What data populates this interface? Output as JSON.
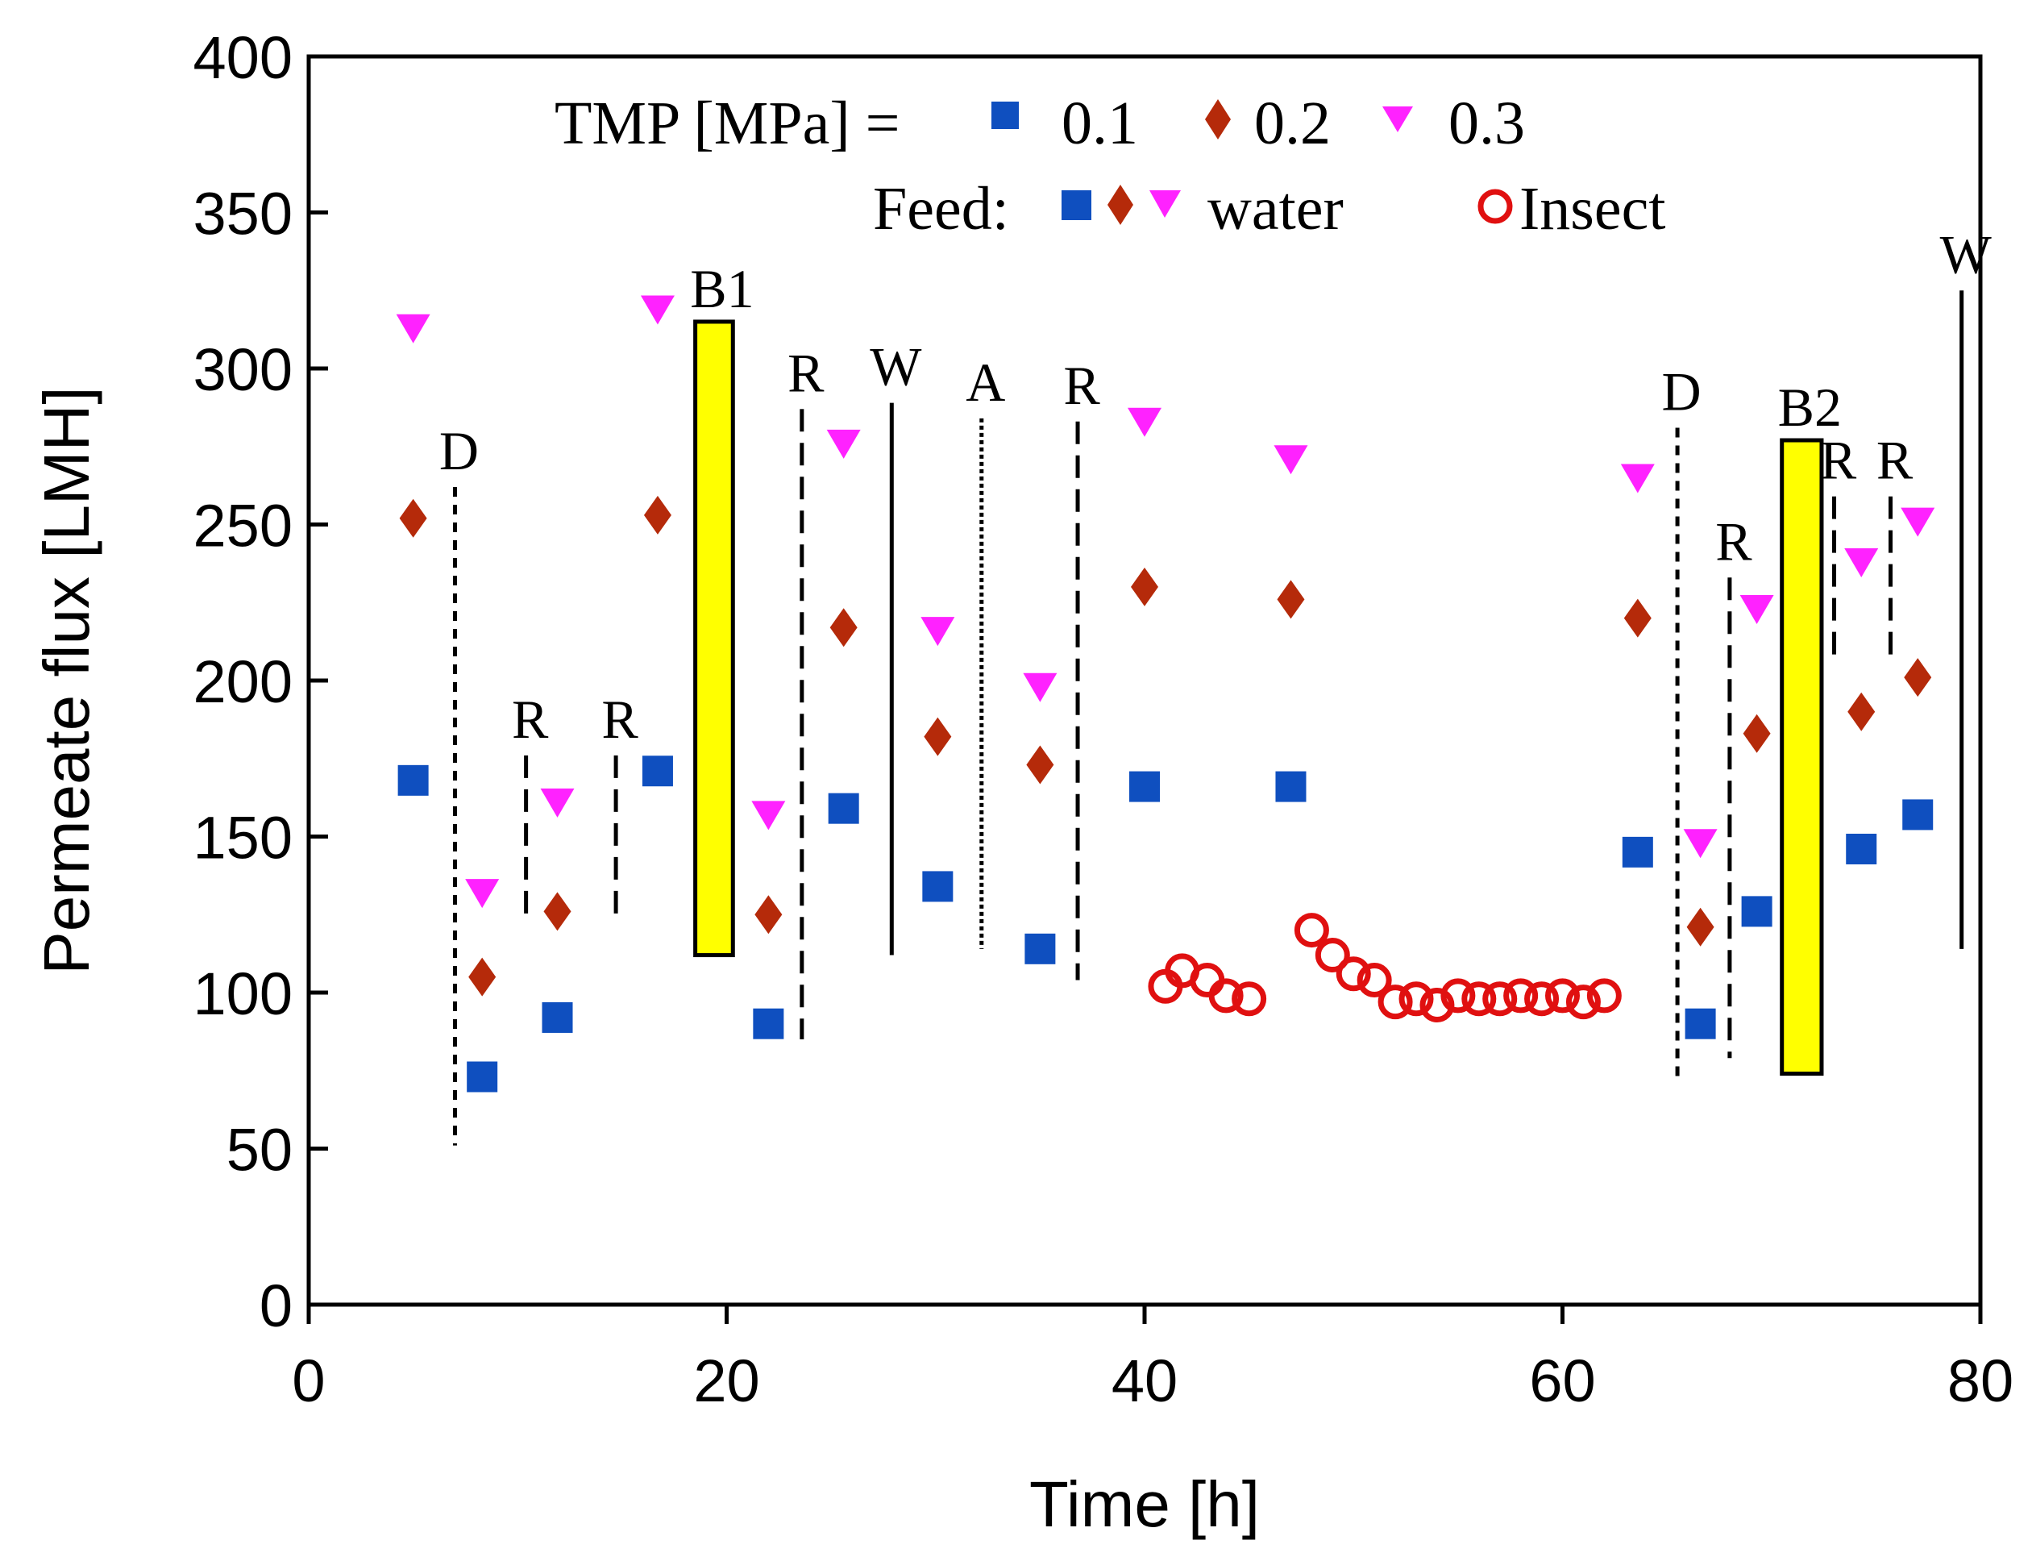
{
  "chart_data": {
    "type": "scatter",
    "xlabel": "Time [h]",
    "ylabel": "Permeate flux [LMH]",
    "xlim": [
      0,
      80
    ],
    "ylim": [
      0,
      400
    ],
    "xticks": [
      0,
      20,
      40,
      60,
      80
    ],
    "yticks": [
      0,
      50,
      100,
      150,
      200,
      250,
      300,
      350,
      400
    ],
    "grid": false,
    "legend": {
      "position": "top",
      "tmp_label": "TMP [MPa] =",
      "tmp_entries": [
        "0.1",
        "0.2",
        "0.3"
      ],
      "feed_label": "Feed:",
      "water_label": "water",
      "insect_label": "Insect"
    },
    "colors": {
      "tmp_0_1": "#0f4fbf",
      "tmp_0_2": "#b52a0a",
      "tmp_0_3": "#ff22ff",
      "insect": "#e01010",
      "bar_fill": "#ffff00"
    },
    "series": [
      {
        "name": "0.1",
        "marker": "square",
        "feed": "water",
        "points": [
          [
            5,
            168
          ],
          [
            8.3,
            73
          ],
          [
            11.9,
            92
          ],
          [
            16.7,
            171
          ],
          [
            22,
            90
          ],
          [
            25.6,
            159
          ],
          [
            30.1,
            134
          ],
          [
            35,
            114
          ],
          [
            40,
            166
          ],
          [
            47,
            166
          ],
          [
            63.6,
            145
          ],
          [
            66.6,
            90
          ],
          [
            69.3,
            126
          ],
          [
            74.3,
            146
          ],
          [
            77,
            157
          ]
        ]
      },
      {
        "name": "0.2",
        "marker": "diamond",
        "feed": "water",
        "points": [
          [
            5,
            252
          ],
          [
            8.3,
            105
          ],
          [
            11.9,
            126
          ],
          [
            16.7,
            253
          ],
          [
            22,
            125
          ],
          [
            25.6,
            217
          ],
          [
            30.1,
            182
          ],
          [
            35,
            173
          ],
          [
            40,
            230
          ],
          [
            47,
            226
          ],
          [
            63.6,
            220
          ],
          [
            66.6,
            121
          ],
          [
            69.3,
            183
          ],
          [
            74.3,
            190
          ],
          [
            77,
            201
          ]
        ]
      },
      {
        "name": "0.3",
        "marker": "triangle-down",
        "feed": "water",
        "points": [
          [
            5,
            313
          ],
          [
            8.3,
            132
          ],
          [
            11.9,
            161
          ],
          [
            16.7,
            319
          ],
          [
            22,
            157
          ],
          [
            25.6,
            276
          ],
          [
            30.1,
            216
          ],
          [
            35,
            198
          ],
          [
            40,
            283
          ],
          [
            47,
            271
          ],
          [
            63.6,
            265
          ],
          [
            66.6,
            148
          ],
          [
            69.3,
            223
          ],
          [
            74.3,
            238
          ],
          [
            77,
            251
          ]
        ]
      },
      {
        "name": "Insect",
        "marker": "circle-open",
        "feed": "insect",
        "points": [
          [
            41,
            102
          ],
          [
            41.8,
            107
          ],
          [
            43,
            104
          ],
          [
            43.9,
            99
          ],
          [
            45,
            98
          ],
          [
            48,
            120
          ],
          [
            49,
            112
          ],
          [
            50,
            106
          ],
          [
            51,
            104
          ],
          [
            52,
            97
          ],
          [
            53,
            98
          ],
          [
            54,
            96
          ],
          [
            55,
            99
          ],
          [
            56,
            98
          ],
          [
            57,
            98
          ],
          [
            58,
            99
          ],
          [
            59,
            98
          ],
          [
            60,
            99
          ],
          [
            61,
            97
          ],
          [
            62,
            99
          ]
        ]
      }
    ],
    "events": [
      {
        "label": "D",
        "x": 7,
        "style": "dotted",
        "y_from": 51,
        "y_to": 262
      },
      {
        "label": "R",
        "x": 10.4,
        "style": "dashed",
        "y_from": 124,
        "y_to": 176
      },
      {
        "label": "R",
        "x": 14.7,
        "style": "dashed",
        "y_from": 124,
        "y_to": 176
      },
      {
        "label": "R",
        "x": 23.6,
        "style": "dashed",
        "y_from": 85,
        "y_to": 287
      },
      {
        "label": "W",
        "x": 27.9,
        "style": "solid",
        "y_from": 112,
        "y_to": 289
      },
      {
        "label": "A",
        "x": 32.2,
        "style": "dense-dotted",
        "y_from": 114,
        "y_to": 284
      },
      {
        "label": "R",
        "x": 36.8,
        "style": "dashed",
        "y_from": 104,
        "y_to": 283
      },
      {
        "label": "D",
        "x": 65.5,
        "style": "dotted",
        "y_from": 71,
        "y_to": 281
      },
      {
        "label": "R",
        "x": 68,
        "style": "dashed",
        "y_from": 79,
        "y_to": 233
      },
      {
        "label": "R",
        "x": 73,
        "style": "dashed",
        "y_from": 207,
        "y_to": 259
      },
      {
        "label": "R",
        "x": 75.7,
        "style": "dashed",
        "y_from": 207,
        "y_to": 259
      },
      {
        "label": "W",
        "x": 79.1,
        "style": "solid",
        "y_from": 114,
        "y_to": 325
      }
    ],
    "bars": [
      {
        "label": "B1",
        "x_from": 18.5,
        "x_to": 20.3,
        "y_from": 112,
        "y_to": 315
      },
      {
        "label": "B2",
        "x_from": 70.5,
        "x_to": 72.4,
        "y_from": 74,
        "y_to": 277
      }
    ]
  }
}
